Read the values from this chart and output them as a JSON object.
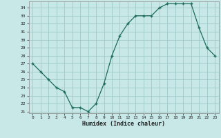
{
  "x": [
    0,
    1,
    2,
    3,
    4,
    5,
    6,
    7,
    8,
    9,
    10,
    11,
    12,
    13,
    14,
    15,
    16,
    17,
    18,
    19,
    20,
    21,
    22,
    23
  ],
  "y": [
    27,
    26,
    25,
    24,
    23.5,
    21.5,
    21.5,
    21,
    22,
    24.5,
    28,
    30.5,
    32,
    33,
    33,
    33,
    34,
    34.5,
    34.5,
    34.5,
    34.5,
    31.5,
    29,
    28
  ],
  "xlabel": "Humidex (Indice chaleur)",
  "ylim_min": 20.8,
  "ylim_max": 34.8,
  "xlim_min": -0.5,
  "xlim_max": 23.5,
  "yticks": [
    21,
    22,
    23,
    24,
    25,
    26,
    27,
    28,
    29,
    30,
    31,
    32,
    33,
    34
  ],
  "xticks": [
    0,
    1,
    2,
    3,
    4,
    5,
    6,
    7,
    8,
    9,
    10,
    11,
    12,
    13,
    14,
    15,
    16,
    17,
    18,
    19,
    20,
    21,
    22,
    23
  ],
  "line_color": "#1a6b5a",
  "bg_color": "#c8e8e8",
  "grid_color": "#a0c8c8",
  "font_color": "#222222",
  "marker": "+"
}
